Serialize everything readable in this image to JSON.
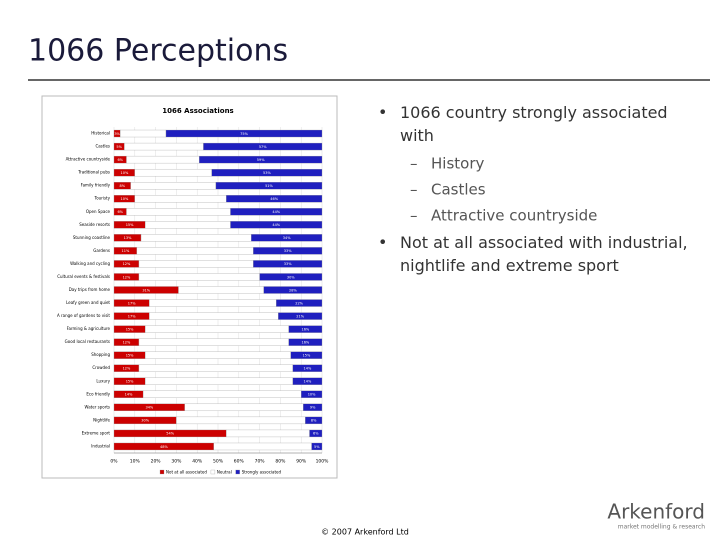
{
  "slide": {
    "title": "1066 Perceptions",
    "bullets": [
      {
        "text": "1066 country strongly associated with",
        "sub": [
          "History",
          "Castles",
          "Attractive countryside"
        ]
      },
      {
        "text": "Not at all associated with industrial, nightlife and extreme sport"
      }
    ],
    "footer": "© 2007 Arkenford Ltd",
    "logo": "Arkenford",
    "logo_tagline": "market modelling & research"
  },
  "chart_data": {
    "type": "stacked_barh",
    "title": "1066 Associations",
    "categories": [
      "Historical",
      "Castles",
      "Attractive countryside",
      "Traditional pubs",
      "Family friendly",
      "Touristy",
      "Open Space",
      "Seaside resorts",
      "Stunning coastline",
      "Gardens",
      "Walking and cycling",
      "Cultural events & festivals",
      "Day trips from home",
      "Leafy green and quiet",
      "A range of gardens to visit",
      "Farming & agriculture",
      "Good local restaurants",
      "Shopping",
      "Crowded",
      "Luxury",
      "Eco friendly",
      "Water sports",
      "Nightlife",
      "Extreme sport",
      "Industrial"
    ],
    "series": [
      {
        "name": "Not at all associated",
        "color": "#cc0000",
        "values": [
          3,
          5,
          6,
          10,
          8,
          10,
          6,
          15,
          13,
          11,
          12,
          12,
          31,
          17,
          17,
          15,
          12,
          15,
          12,
          15,
          14,
          34,
          30,
          54,
          48
        ],
        "value_labels": [
          "3%",
          "5%",
          "6%",
          "10%",
          "8%",
          "10%",
          "6%",
          "15%",
          "13%",
          "11%",
          "12%",
          "12%",
          "31%",
          "17%",
          "17%",
          "15%",
          "12%",
          "15%",
          "12%",
          "15%",
          "14%",
          "34%",
          "30%",
          "54%",
          "48%"
        ]
      },
      {
        "name": "Neutral",
        "color": "#ffffff",
        "values": [
          22,
          38,
          35,
          37,
          41,
          44,
          50,
          41,
          53,
          56,
          55,
          58,
          41,
          61,
          62,
          69,
          72,
          70,
          74,
          71,
          76,
          57,
          62,
          40,
          47
        ]
      },
      {
        "name": "Strongly associated",
        "color": "#1f1fbf",
        "values": [
          75,
          57,
          59,
          53,
          51,
          46,
          44,
          44,
          34,
          33,
          33,
          30,
          28,
          22,
          21,
          16,
          16,
          15,
          14,
          14,
          10,
          9,
          8,
          6,
          5
        ],
        "value_labels": [
          "75%",
          "57%",
          "59%",
          "53%",
          "51%",
          "46%",
          "44%",
          "44%",
          "34%",
          "33%",
          "33%",
          "30%",
          "28%",
          "22%",
          "21%",
          "16%",
          "16%",
          "15%",
          "14%",
          "14%",
          "10%",
          "9%",
          "8%",
          "6%",
          "5%"
        ]
      }
    ],
    "xlim": [
      0,
      100
    ],
    "xticks": [
      {
        "value": 0,
        "label": "0%"
      },
      {
        "value": 10,
        "label": "10%"
      },
      {
        "value": 20,
        "label": "20%"
      },
      {
        "value": 30,
        "label": "30%"
      },
      {
        "value": 40,
        "label": "40%"
      },
      {
        "value": 50,
        "label": "50%"
      },
      {
        "value": 60,
        "label": "60%"
      },
      {
        "value": 70,
        "label": "70%"
      },
      {
        "value": 80,
        "label": "80%"
      },
      {
        "value": 90,
        "label": "90%"
      },
      {
        "value": 100,
        "label": "100%"
      }
    ],
    "grid": true
  }
}
